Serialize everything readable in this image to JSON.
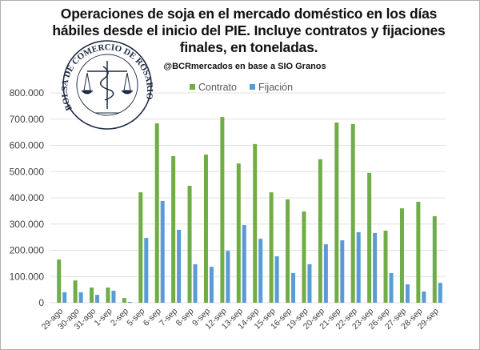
{
  "chart_data": {
    "type": "bar",
    "title": "Operaciones de soja en el mercado doméstico en los días hábiles desde el inicio del PIE. Incluye contratos y fijaciones finales, en toneladas.",
    "subtitle": "@BCRmercados en base a SIO Granos",
    "categories": [
      "29-ago",
      "30-ago",
      "31-ago",
      "1-sep",
      "2-sep",
      "5-sep",
      "6-sep",
      "7-sep",
      "8-sep",
      "9-sep",
      "12-sep",
      "13-sep",
      "14-sep",
      "15-sep",
      "16-sep",
      "19-sep",
      "20-sep",
      "21-sep",
      "22-sep",
      "23-sep",
      "26-sep",
      "27-sep",
      "28-sep",
      "29-sep"
    ],
    "series": [
      {
        "name": "Contrato",
        "color": "#70ad47",
        "values": [
          165000,
          85000,
          58000,
          58000,
          18000,
          421000,
          684000,
          559000,
          446000,
          565000,
          708000,
          531000,
          605000,
          421000,
          394000,
          348000,
          547000,
          687000,
          681000,
          495000,
          275000,
          360000,
          385000,
          330000
        ]
      },
      {
        "name": "Fijación",
        "color": "#5b9bd5",
        "values": [
          40000,
          40000,
          30000,
          46000,
          3000,
          247000,
          388000,
          278000,
          147000,
          137000,
          198000,
          296000,
          244000,
          177000,
          113000,
          147000,
          223000,
          238000,
          269000,
          266000,
          113000,
          70000,
          43000,
          76000
        ]
      }
    ],
    "yticks": [
      "0",
      "100.000",
      "200.000",
      "300.000",
      "400.000",
      "500.000",
      "600.000",
      "700.000",
      "800.000"
    ],
    "ylim": [
      0,
      800000
    ],
    "grid": true,
    "legend": "top",
    "logo_text": "BOLSA DE COMERCIO DE ROSARIO"
  }
}
